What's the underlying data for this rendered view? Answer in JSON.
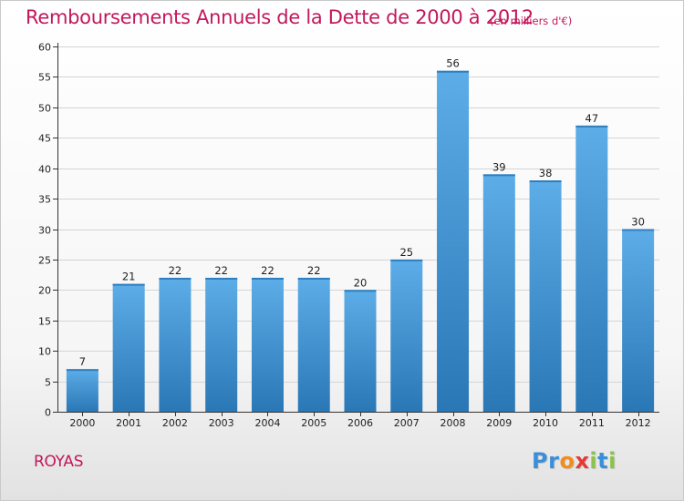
{
  "header": {
    "title": "Remboursements Annuels de la Dette de 2000 à 2012",
    "subtitle": "(en milliers d'€)"
  },
  "footer": {
    "commune": "ROYAS",
    "logo_letters": [
      "P",
      "r",
      "o",
      "x",
      "i",
      "t",
      "i"
    ],
    "logo_colors": [
      "#3a8fd8",
      "#3a8fd8",
      "#f28c1c",
      "#e53935",
      "#8bc34a",
      "#3a8fd8",
      "#8bc34a"
    ]
  },
  "colors": {
    "bar_light": "#5dade8",
    "bar_dark": "#2a77b5",
    "title": "#c2185b",
    "grid": "#d4d4d4"
  },
  "chart_data": {
    "type": "bar",
    "title": "Remboursements Annuels de la Dette de 2000 à 2012",
    "subtitle": "(en milliers d'€)",
    "categories": [
      "2000",
      "2001",
      "2002",
      "2003",
      "2004",
      "2005",
      "2006",
      "2007",
      "2008",
      "2009",
      "2010",
      "2011",
      "2012"
    ],
    "values": [
      7,
      21,
      22,
      22,
      22,
      22,
      20,
      25,
      56,
      39,
      38,
      47,
      30
    ],
    "ylim": [
      0,
      60
    ],
    "yticks": [
      0,
      5,
      10,
      15,
      20,
      25,
      30,
      35,
      40,
      45,
      50,
      55,
      60
    ],
    "grid": true,
    "data_labels": true
  }
}
